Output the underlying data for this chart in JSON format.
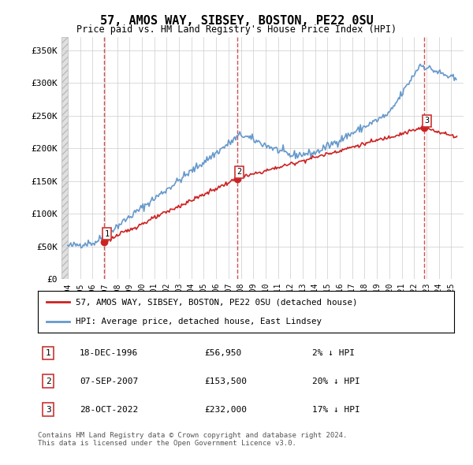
{
  "title": "57, AMOS WAY, SIBSEY, BOSTON, PE22 0SU",
  "subtitle": "Price paid vs. HM Land Registry's House Price Index (HPI)",
  "ylabel_ticks": [
    "£0",
    "£50K",
    "£100K",
    "£150K",
    "£200K",
    "£250K",
    "£300K",
    "£350K"
  ],
  "ytick_values": [
    0,
    50000,
    100000,
    150000,
    200000,
    250000,
    300000,
    350000
  ],
  "ylim": [
    0,
    370000
  ],
  "xlim_start": 1993.5,
  "xlim_end": 2026.0,
  "hpi_color": "#6699cc",
  "price_color": "#cc2222",
  "sale_marker_color": "#cc2222",
  "vline_color": "#cc3333",
  "grid_color": "#cccccc",
  "bg_color": "#ffffff",
  "sales": [
    {
      "date_num": 1996.96,
      "price": 56950,
      "label": "1"
    },
    {
      "date_num": 2007.68,
      "price": 153500,
      "label": "2"
    },
    {
      "date_num": 2022.83,
      "price": 232000,
      "label": "3"
    }
  ],
  "legend_line1": "57, AMOS WAY, SIBSEY, BOSTON, PE22 0SU (detached house)",
  "legend_line2": "HPI: Average price, detached house, East Lindsey",
  "table_rows": [
    {
      "num": "1",
      "date": "18-DEC-1996",
      "price": "£56,950",
      "hpi": "2% ↓ HPI"
    },
    {
      "num": "2",
      "date": "07-SEP-2007",
      "price": "£153,500",
      "hpi": "20% ↓ HPI"
    },
    {
      "num": "3",
      "date": "28-OCT-2022",
      "price": "£232,000",
      "hpi": "17% ↓ HPI"
    }
  ],
  "footer": "Contains HM Land Registry data © Crown copyright and database right 2024.\nThis data is licensed under the Open Government Licence v3.0."
}
